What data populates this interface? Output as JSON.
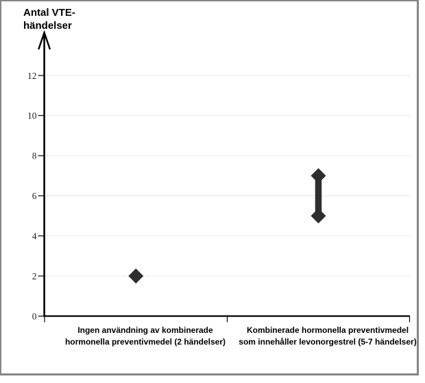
{
  "chart_data": {
    "type": "scatter",
    "ylabel": "Antal VTE-händelser",
    "ylabel_lines": [
      "Antal VTE-",
      "händelser"
    ],
    "xlabel": "",
    "ylim": [
      0,
      12
    ],
    "y_ticks": [
      0,
      2,
      4,
      6,
      8,
      10,
      12
    ],
    "grid": true,
    "legend": false,
    "marker": "diamond",
    "categories": [
      {
        "label": "Ingen användning av kombinerade hormonella preventivmedel (2 händelser)",
        "label_lines": [
          "Ingen användning av kombinerade",
          "hormonella preventivmedel (2 händelser)"
        ],
        "values": [
          2
        ],
        "range_connector": false
      },
      {
        "label": "Kombinerade hormonella preventivmedel som innehåller levonorgestrel (5-7 händelser)",
        "label_lines": [
          "Kombinerade hormonella preventivmedel",
          "som innehåller levonorgestrel (5-7 händelser)"
        ],
        "values": [
          5,
          7
        ],
        "range_connector": true
      }
    ],
    "colors": {
      "marker": "#2e2e2e",
      "grid": "#e8e8e8",
      "axis": "#000000",
      "tick_label": "#1f1f1f",
      "frame_border": "#858585",
      "background": "#ffffff"
    }
  }
}
